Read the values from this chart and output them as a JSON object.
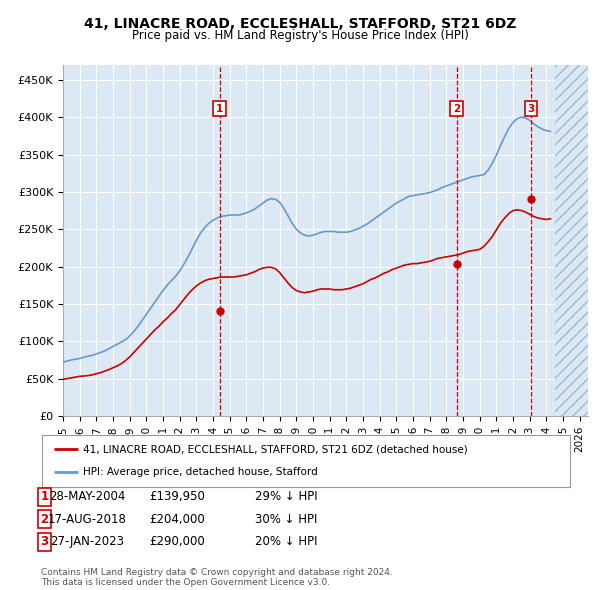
{
  "title": "41, LINACRE ROAD, ECCLESHALL, STAFFORD, ST21 6DZ",
  "subtitle": "Price paid vs. HM Land Registry's House Price Index (HPI)",
  "yticks": [
    0,
    50000,
    100000,
    150000,
    200000,
    250000,
    300000,
    350000,
    400000,
    450000
  ],
  "ytick_labels": [
    "£0",
    "£50K",
    "£100K",
    "£150K",
    "£200K",
    "£250K",
    "£300K",
    "£350K",
    "£400K",
    "£450K"
  ],
  "xlim_start": 1995.0,
  "xlim_end": 2026.5,
  "ylim": [
    0,
    470000
  ],
  "background_color": "#dce9f5",
  "grid_color": "#ffffff",
  "sale_color": "#cc0000",
  "hpi_color": "#6699cc",
  "sale_label": "41, LINACRE ROAD, ECCLESHALL, STAFFORD, ST21 6DZ (detached house)",
  "hpi_label": "HPI: Average price, detached house, Stafford",
  "transactions": [
    {
      "date": 2004.4,
      "price": 139950,
      "label": "1"
    },
    {
      "date": 2018.62,
      "price": 204000,
      "label": "2"
    },
    {
      "date": 2023.07,
      "price": 290000,
      "label": "3"
    }
  ],
  "transaction_details": [
    {
      "label": "1",
      "date_str": "28-MAY-2004",
      "price_str": "£139,950",
      "hpi_str": "29% ↓ HPI"
    },
    {
      "label": "2",
      "date_str": "17-AUG-2018",
      "price_str": "£204,000",
      "hpi_str": "30% ↓ HPI"
    },
    {
      "label": "3",
      "date_str": "27-JAN-2023",
      "price_str": "£290,000",
      "hpi_str": "20% ↓ HPI"
    }
  ],
  "footer": "Contains HM Land Registry data © Crown copyright and database right 2024.\nThis data is licensed under the Open Government Licence v3.0.",
  "hpi_data_years": [
    1995.0,
    1995.25,
    1995.5,
    1995.75,
    1996.0,
    1996.25,
    1996.5,
    1996.75,
    1997.0,
    1997.25,
    1997.5,
    1997.75,
    1998.0,
    1998.25,
    1998.5,
    1998.75,
    1999.0,
    1999.25,
    1999.5,
    1999.75,
    2000.0,
    2000.25,
    2000.5,
    2000.75,
    2001.0,
    2001.25,
    2001.5,
    2001.75,
    2002.0,
    2002.25,
    2002.5,
    2002.75,
    2003.0,
    2003.25,
    2003.5,
    2003.75,
    2004.0,
    2004.25,
    2004.5,
    2004.75,
    2005.0,
    2005.25,
    2005.5,
    2005.75,
    2006.0,
    2006.25,
    2006.5,
    2006.75,
    2007.0,
    2007.25,
    2007.5,
    2007.75,
    2008.0,
    2008.25,
    2008.5,
    2008.75,
    2009.0,
    2009.25,
    2009.5,
    2009.75,
    2010.0,
    2010.25,
    2010.5,
    2010.75,
    2011.0,
    2011.25,
    2011.5,
    2011.75,
    2012.0,
    2012.25,
    2012.5,
    2012.75,
    2013.0,
    2013.25,
    2013.5,
    2013.75,
    2014.0,
    2014.25,
    2014.5,
    2014.75,
    2015.0,
    2015.25,
    2015.5,
    2015.75,
    2016.0,
    2016.25,
    2016.5,
    2016.75,
    2017.0,
    2017.25,
    2017.5,
    2017.75,
    2018.0,
    2018.25,
    2018.5,
    2018.75,
    2019.0,
    2019.25,
    2019.5,
    2019.75,
    2020.0,
    2020.25,
    2020.5,
    2020.75,
    2021.0,
    2021.25,
    2021.5,
    2021.75,
    2022.0,
    2022.25,
    2022.5,
    2022.75,
    2023.0,
    2023.25,
    2023.5,
    2023.75,
    2024.0,
    2024.25
  ],
  "hpi_data_values": [
    72000,
    73500,
    75000,
    76000,
    77000,
    78500,
    80000,
    81000,
    83000,
    85000,
    87000,
    90000,
    93000,
    96000,
    99000,
    102000,
    107000,
    113000,
    120000,
    128000,
    136000,
    144000,
    152000,
    160000,
    168000,
    175000,
    181000,
    187000,
    194000,
    203000,
    213000,
    224000,
    235000,
    245000,
    252000,
    258000,
    262000,
    265000,
    267000,
    268000,
    269000,
    269000,
    269000,
    270000,
    272000,
    274000,
    277000,
    281000,
    285000,
    289000,
    291000,
    290000,
    286000,
    278000,
    268000,
    258000,
    250000,
    245000,
    242000,
    241000,
    242000,
    244000,
    246000,
    247000,
    247000,
    247000,
    246000,
    246000,
    246000,
    247000,
    249000,
    251000,
    254000,
    257000,
    261000,
    265000,
    269000,
    273000,
    277000,
    281000,
    285000,
    288000,
    291000,
    294000,
    295000,
    296000,
    297000,
    298000,
    299000,
    301000,
    303000,
    306000,
    308000,
    310000,
    312000,
    314000,
    316000,
    318000,
    320000,
    321000,
    322000,
    323000,
    329000,
    338000,
    349000,
    362000,
    374000,
    385000,
    393000,
    398000,
    400000,
    399000,
    396000,
    391000,
    387000,
    384000,
    382000,
    381000
  ],
  "sale_data_years": [
    1995.0,
    1995.25,
    1995.5,
    1995.75,
    1996.0,
    1996.25,
    1996.5,
    1996.75,
    1997.0,
    1997.25,
    1997.5,
    1997.75,
    1998.0,
    1998.25,
    1998.5,
    1998.75,
    1999.0,
    1999.25,
    1999.5,
    1999.75,
    2000.0,
    2000.25,
    2000.5,
    2000.75,
    2001.0,
    2001.25,
    2001.5,
    2001.75,
    2002.0,
    2002.25,
    2002.5,
    2002.75,
    2003.0,
    2003.25,
    2003.5,
    2003.75,
    2004.0,
    2004.25,
    2004.5,
    2004.75,
    2005.0,
    2005.25,
    2005.5,
    2005.75,
    2006.0,
    2006.25,
    2006.5,
    2006.75,
    2007.0,
    2007.25,
    2007.5,
    2007.75,
    2008.0,
    2008.25,
    2008.5,
    2008.75,
    2009.0,
    2009.25,
    2009.5,
    2009.75,
    2010.0,
    2010.25,
    2010.5,
    2010.75,
    2011.0,
    2011.25,
    2011.5,
    2011.75,
    2012.0,
    2012.25,
    2012.5,
    2012.75,
    2013.0,
    2013.25,
    2013.5,
    2013.75,
    2014.0,
    2014.25,
    2014.5,
    2014.75,
    2015.0,
    2015.25,
    2015.5,
    2015.75,
    2016.0,
    2016.25,
    2016.5,
    2016.75,
    2017.0,
    2017.25,
    2017.5,
    2017.75,
    2018.0,
    2018.25,
    2018.5,
    2018.75,
    2019.0,
    2019.25,
    2019.5,
    2019.75,
    2020.0,
    2020.25,
    2020.5,
    2020.75,
    2021.0,
    2021.25,
    2021.5,
    2021.75,
    2022.0,
    2022.25,
    2022.5,
    2022.75,
    2023.0,
    2023.25,
    2023.5,
    2023.75,
    2024.0,
    2024.25
  ],
  "sale_data_values": [
    49000,
    50000,
    51000,
    52000,
    53000,
    53500,
    54000,
    55000,
    56500,
    58000,
    60000,
    62000,
    64500,
    67000,
    70000,
    74000,
    79000,
    85000,
    91000,
    97000,
    103000,
    109000,
    115000,
    120000,
    126000,
    131000,
    137000,
    142000,
    149000,
    156000,
    163000,
    169000,
    174000,
    178000,
    181000,
    183000,
    184000,
    185000,
    186000,
    186000,
    186000,
    186000,
    187000,
    188000,
    189000,
    191000,
    193000,
    196000,
    198000,
    199000,
    199000,
    197000,
    192000,
    185000,
    178000,
    172000,
    168000,
    166000,
    165000,
    166000,
    167000,
    169000,
    170000,
    170000,
    170000,
    169000,
    169000,
    169000,
    170000,
    171000,
    173000,
    175000,
    177000,
    180000,
    183000,
    185000,
    188000,
    191000,
    193000,
    196000,
    198000,
    200000,
    202000,
    203000,
    204000,
    204000,
    205000,
    206000,
    207000,
    209000,
    211000,
    212000,
    213000,
    214000,
    215000,
    216000,
    218000,
    220000,
    221000,
    222000,
    223000,
    227000,
    233000,
    240000,
    249000,
    258000,
    265000,
    271000,
    275000,
    276000,
    275000,
    273000,
    270000,
    267000,
    265000,
    264000,
    263000,
    264000
  ]
}
